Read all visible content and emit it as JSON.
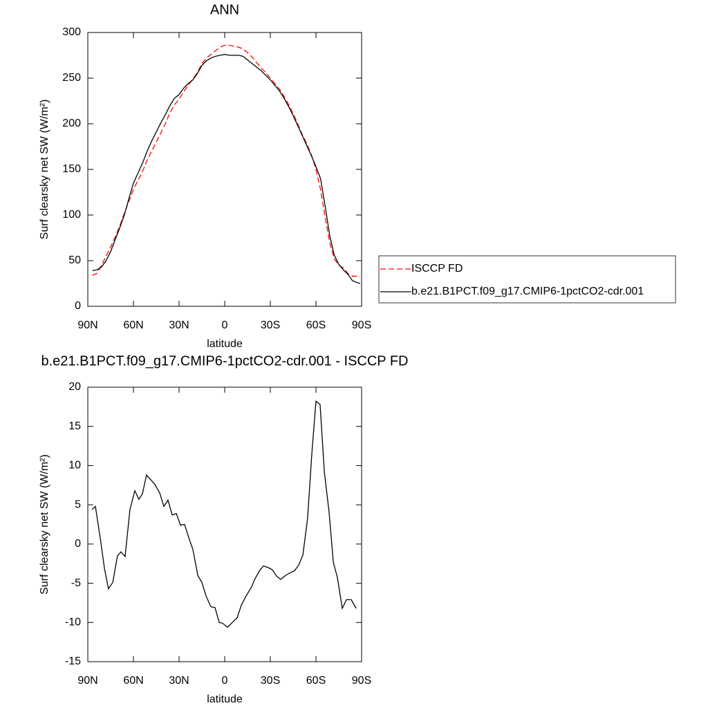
{
  "chart_data": [
    {
      "type": "line",
      "title": "ANN",
      "x_label": "latitude",
      "y_label": "Surf clearsky net SW (W/m²)",
      "xlim": [
        90,
        -90
      ],
      "xticks": [
        {
          "value": 90,
          "label": "90N"
        },
        {
          "value": 60,
          "label": "60N"
        },
        {
          "value": 30,
          "label": "30N"
        },
        0,
        {
          "value": -30,
          "label": "30S"
        },
        {
          "value": -60,
          "label": "60S"
        },
        {
          "value": -90,
          "label": "90S"
        }
      ],
      "ylim": [
        0,
        300
      ],
      "yticks": [
        0,
        50,
        100,
        150,
        200,
        250,
        300
      ],
      "legend": "outside-right",
      "x": [
        87,
        84,
        81,
        78,
        75,
        72,
        69,
        66,
        63,
        60,
        57,
        54,
        51,
        48,
        45,
        42,
        39,
        36,
        33,
        30,
        27,
        24,
        21,
        18,
        15,
        12,
        9,
        6,
        3,
        0,
        -3,
        -6,
        -9,
        -12,
        -15,
        -18,
        -21,
        -24,
        -27,
        -30,
        -33,
        -36,
        -39,
        -42,
        -45,
        -48,
        -51,
        -54,
        -57,
        -60,
        -63,
        -66,
        -69,
        -72,
        -75,
        -78,
        -81,
        -84,
        -87,
        -89
      ],
      "series": [
        {
          "name": "ISCCP FD",
          "color": "#ff0000",
          "dash": "dashed",
          "values": [
            34,
            36,
            45,
            55,
            65,
            76,
            88,
            102,
            115,
            128,
            138,
            148,
            160,
            170,
            180,
            190,
            200,
            212,
            221,
            227,
            235,
            242,
            249,
            256,
            266,
            272,
            276,
            280,
            284,
            286,
            286,
            285,
            284,
            282,
            278,
            273,
            267,
            261,
            256,
            250,
            244,
            238,
            230,
            221,
            211,
            200,
            188,
            178,
            166,
            150,
            128,
            98,
            70,
            52,
            45,
            42,
            36,
            33,
            33,
            32
          ]
        },
        {
          "name": "b.e21.B1PCT.f09_g17.CMIP6-1pctCO2-cdr.001",
          "color": "#000000",
          "dash": "solid",
          "values": [
            39,
            40,
            43,
            50,
            60,
            73,
            86,
            100,
            118,
            135,
            146,
            157,
            170,
            181,
            191,
            201,
            210,
            220,
            228,
            232,
            239,
            244,
            248,
            255,
            264,
            269,
            272,
            274,
            275,
            276,
            275,
            275,
            275,
            274,
            270,
            266,
            262,
            258,
            253,
            248,
            242,
            236,
            228,
            219,
            209,
            198,
            187,
            176,
            165,
            153,
            140,
            110,
            78,
            56,
            46,
            40,
            35,
            28,
            26,
            25
          ]
        }
      ]
    },
    {
      "type": "line",
      "title": "b.e21.B1PCT.f09_g17.CMIP6-1pctCO2-cdr.001 - ISCCP FD",
      "x_label": "latitude",
      "y_label": "Surf clearsky net SW (W/m²)",
      "xlim": [
        90,
        -90
      ],
      "xticks": [
        {
          "value": 90,
          "label": "90N"
        },
        {
          "value": 60,
          "label": "60N"
        },
        {
          "value": 30,
          "label": "30N"
        },
        0,
        {
          "value": -30,
          "label": "30S"
        },
        {
          "value": -60,
          "label": "60S"
        },
        {
          "value": -90,
          "label": "90S"
        }
      ],
      "ylim": [
        -15,
        20
      ],
      "yticks": [
        -15,
        -10,
        -5,
        0,
        5,
        10,
        15,
        20
      ],
      "x": [
        87.3,
        85,
        81.4,
        79,
        76.4,
        73.6,
        70.5,
        68.2,
        65.5,
        62.3,
        59.1,
        56.4,
        54.1,
        51.4,
        48.6,
        45.9,
        42.7,
        40,
        37.3,
        34.5,
        31.8,
        29.1,
        26.4,
        23.6,
        20.9,
        17.7,
        15,
        12.3,
        9.1,
        6.4,
        3.6,
        1.4,
        -1.8,
        -5,
        -8.2,
        -10.9,
        -14.1,
        -17.3,
        -20,
        -23.2,
        -25.5,
        -28.6,
        -31.4,
        -34.1,
        -36.8,
        -40,
        -42.7,
        -45.9,
        -48.6,
        -51.4,
        -54.5,
        -57.3,
        -60,
        -62.7,
        -65.5,
        -68.6,
        -71.4,
        -74.1,
        -77.3,
        -80,
        -83.2,
        -86.4
      ],
      "color": "#000000",
      "values": [
        4.4,
        4.8,
        0.2,
        -3.2,
        -5.7,
        -4.9,
        -1.5,
        -1,
        -1.6,
        4.4,
        6.8,
        5.7,
        6.4,
        8.8,
        8.2,
        7.6,
        6.5,
        4.8,
        5.6,
        3.7,
        3.9,
        2.4,
        2.5,
        0.8,
        -0.7,
        -4,
        -4.9,
        -6.6,
        -8,
        -8.1,
        -10,
        -10.1,
        -10.6,
        -10,
        -9.4,
        -7.8,
        -6.6,
        -5.6,
        -4.4,
        -3.3,
        -2.8,
        -3,
        -3.3,
        -4.1,
        -4.5,
        -4,
        -3.7,
        -3.4,
        -2.7,
        -1.4,
        3.3,
        11.6,
        18.2,
        17.8,
        9.2,
        4.1,
        -2.3,
        -4.3,
        -8.2,
        -7.1,
        -7.1,
        -8.2
      ]
    }
  ]
}
